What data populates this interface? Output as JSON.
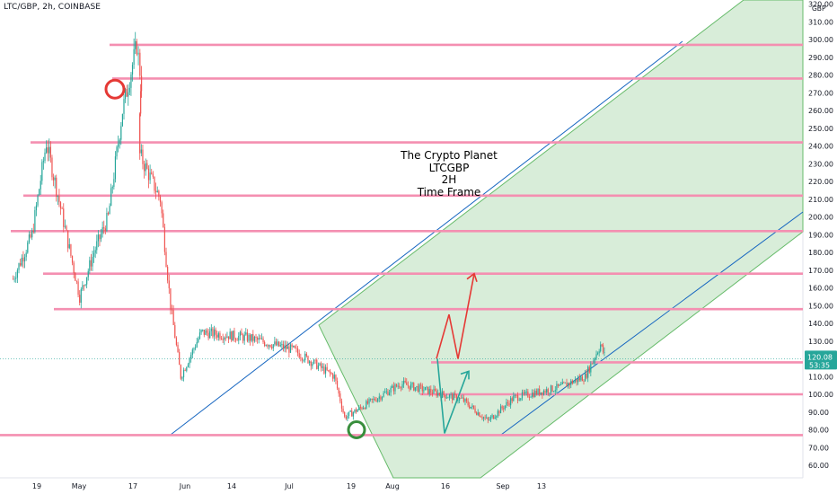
{
  "header": {
    "symbol_line": "LTC/GBP, 2h, COINBASE"
  },
  "annotation": {
    "lines": [
      "The Crypto Planet",
      "LTCGBP",
      "2H",
      "Time Frame"
    ]
  },
  "price_axis": {
    "unit": "GBP",
    "current_price": "120.08",
    "countdown": "53:35"
  },
  "colors": {
    "resistance": "#f48fb1",
    "channel_fill": "#c8e6c9",
    "channel_line": "#1565c0",
    "green_channel_edge": "#66bb6a",
    "up_candle": "#26a69a",
    "down_candle": "#ef5350",
    "bull_arrow": "#e53935",
    "bear_arrow": "#26a69a",
    "price_label": "#26a69a"
  },
  "chart_data": {
    "type": "candlestick",
    "title": "LTC/GBP, 2h, COINBASE",
    "ylim": [
      55,
      325
    ],
    "yticks": [
      60,
      70,
      80,
      90,
      100,
      110,
      120,
      130,
      140,
      150,
      160,
      170,
      180,
      190,
      200,
      210,
      220,
      230,
      240,
      250,
      260,
      270,
      280,
      290,
      300,
      310,
      320
    ],
    "xtick_labels": [
      "19",
      "May",
      "17",
      "Jun",
      "14",
      "Jul",
      "19",
      "Aug",
      "16",
      "Sep",
      "13"
    ],
    "price_path": [
      {
        "t": "Apr 14",
        "close": 165
      },
      {
        "t": "Apr 18",
        "close": 190
      },
      {
        "t": "Apr 21",
        "close": 242
      },
      {
        "t": "Apr 24",
        "close": 205
      },
      {
        "t": "Apr 28",
        "close": 155
      },
      {
        "t": "May 1",
        "close": 180
      },
      {
        "t": "May 4",
        "close": 200
      },
      {
        "t": "May 7",
        "close": 260
      },
      {
        "t": "May 10",
        "close": 297
      },
      {
        "t": "May 11",
        "close": 275
      },
      {
        "t": "May 13",
        "close": 235
      },
      {
        "t": "May 17",
        "close": 210
      },
      {
        "t": "May 19",
        "close": 150
      },
      {
        "t": "May 21",
        "close": 110
      },
      {
        "t": "May 25",
        "close": 135
      },
      {
        "t": "Jun 3",
        "close": 132
      },
      {
        "t": "Jun 12",
        "close": 125
      },
      {
        "t": "Jun 20",
        "close": 110
      },
      {
        "t": "Jun 22",
        "close": 87
      },
      {
        "t": "Jul 3",
        "close": 106
      },
      {
        "t": "Jul 15",
        "close": 97
      },
      {
        "t": "Jul 20",
        "close": 85
      },
      {
        "t": "Jul 25",
        "close": 98
      },
      {
        "t": "Aug 3",
        "close": 104
      },
      {
        "t": "Aug 8",
        "close": 110
      },
      {
        "t": "Aug 11",
        "close": 128
      },
      {
        "t": "Aug 12",
        "close": 120.08
      }
    ],
    "horizontal_levels": [
      297,
      278,
      242,
      212,
      192,
      168,
      148,
      118,
      100,
      77
    ],
    "projection_bullish": [
      120.08,
      145,
      120,
      168
    ],
    "projection_bearish": [
      120.08,
      78,
      113
    ],
    "circles": [
      {
        "label": "top",
        "price": 272
      },
      {
        "label": "bottom",
        "price": 80
      }
    ],
    "current_price": 120.08
  }
}
